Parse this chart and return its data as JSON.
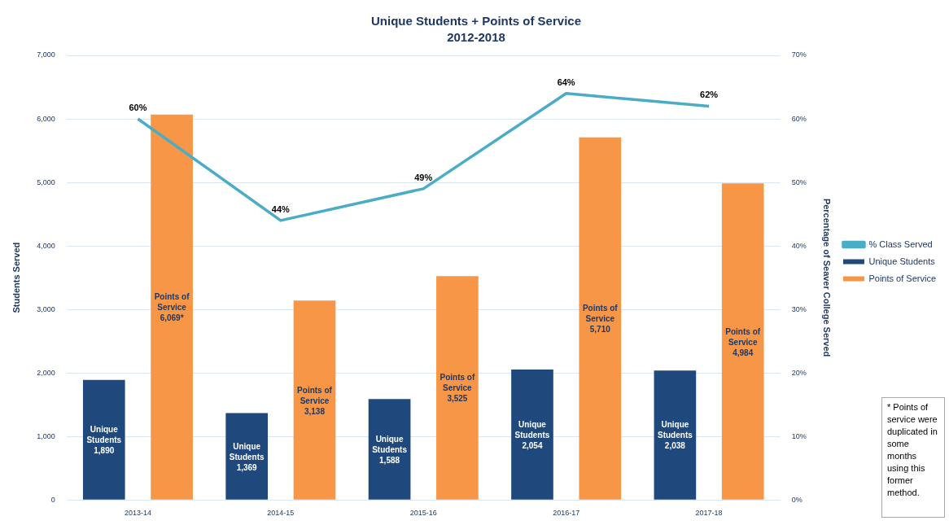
{
  "chart_data": {
    "type": "bar",
    "title": "Unique Students + Points of Service",
    "subtitle": "2012-2018",
    "ylabel": "Students Served",
    "y2label": "Percentage of Seaver College Served",
    "categories": [
      "2013-14",
      "2014-15",
      "2015-16",
      "2016-17",
      "2017-18"
    ],
    "series": [
      {
        "name": "Unique Students",
        "color": "#1f497d",
        "values": [
          1890,
          1369,
          1588,
          2054,
          2038
        ],
        "value_labels": [
          "Unique Students 1,890",
          "Unique Students 1,369",
          "Unique Students 1,588",
          "Unique Students 2,054",
          "Unique Students 2,038"
        ]
      },
      {
        "name": "Points of Service",
        "color": "#f79646",
        "values": [
          6069,
          3138,
          3525,
          5710,
          4984
        ],
        "value_labels": [
          "Points of Service 6,069*",
          "Points of Service 3,138",
          "Points of Service 3,525",
          "Points of Service 5,710",
          "Points of Service 4,984"
        ]
      },
      {
        "name": "% Class Served",
        "type": "line",
        "axis": "y2",
        "color": "#4bacc6",
        "values": [
          60,
          44,
          49,
          64,
          62
        ],
        "value_labels": [
          "60%",
          "44%",
          "49%",
          "64%",
          "62%"
        ]
      }
    ],
    "ylim": [
      0,
      7000
    ],
    "yticks": [
      {
        "value": 0,
        "label": "0"
      },
      {
        "value": 1000,
        "label": "1,000"
      },
      {
        "value": 2000,
        "label": "2,000"
      },
      {
        "value": 3000,
        "label": "3,000"
      },
      {
        "value": 4000,
        "label": "4,000"
      },
      {
        "value": 5000,
        "label": "5,000"
      },
      {
        "value": 6000,
        "label": "6,000"
      },
      {
        "value": 7000,
        "label": "7,000"
      }
    ],
    "y2lim": [
      0,
      70
    ],
    "y2ticks": [
      {
        "value": 0,
        "label": "0%"
      },
      {
        "value": 10,
        "label": "10%"
      },
      {
        "value": 20,
        "label": "20%"
      },
      {
        "value": 30,
        "label": "30%"
      },
      {
        "value": 40,
        "label": "40%"
      },
      {
        "value": 50,
        "label": "50%"
      },
      {
        "value": 60,
        "label": "60%"
      },
      {
        "value": 70,
        "label": "70%"
      }
    ],
    "grid": "y",
    "legend": "right",
    "marker": "none",
    "line_style": "solid",
    "annotations": [
      "* Points of service were duplicated in some months using this former method."
    ]
  }
}
